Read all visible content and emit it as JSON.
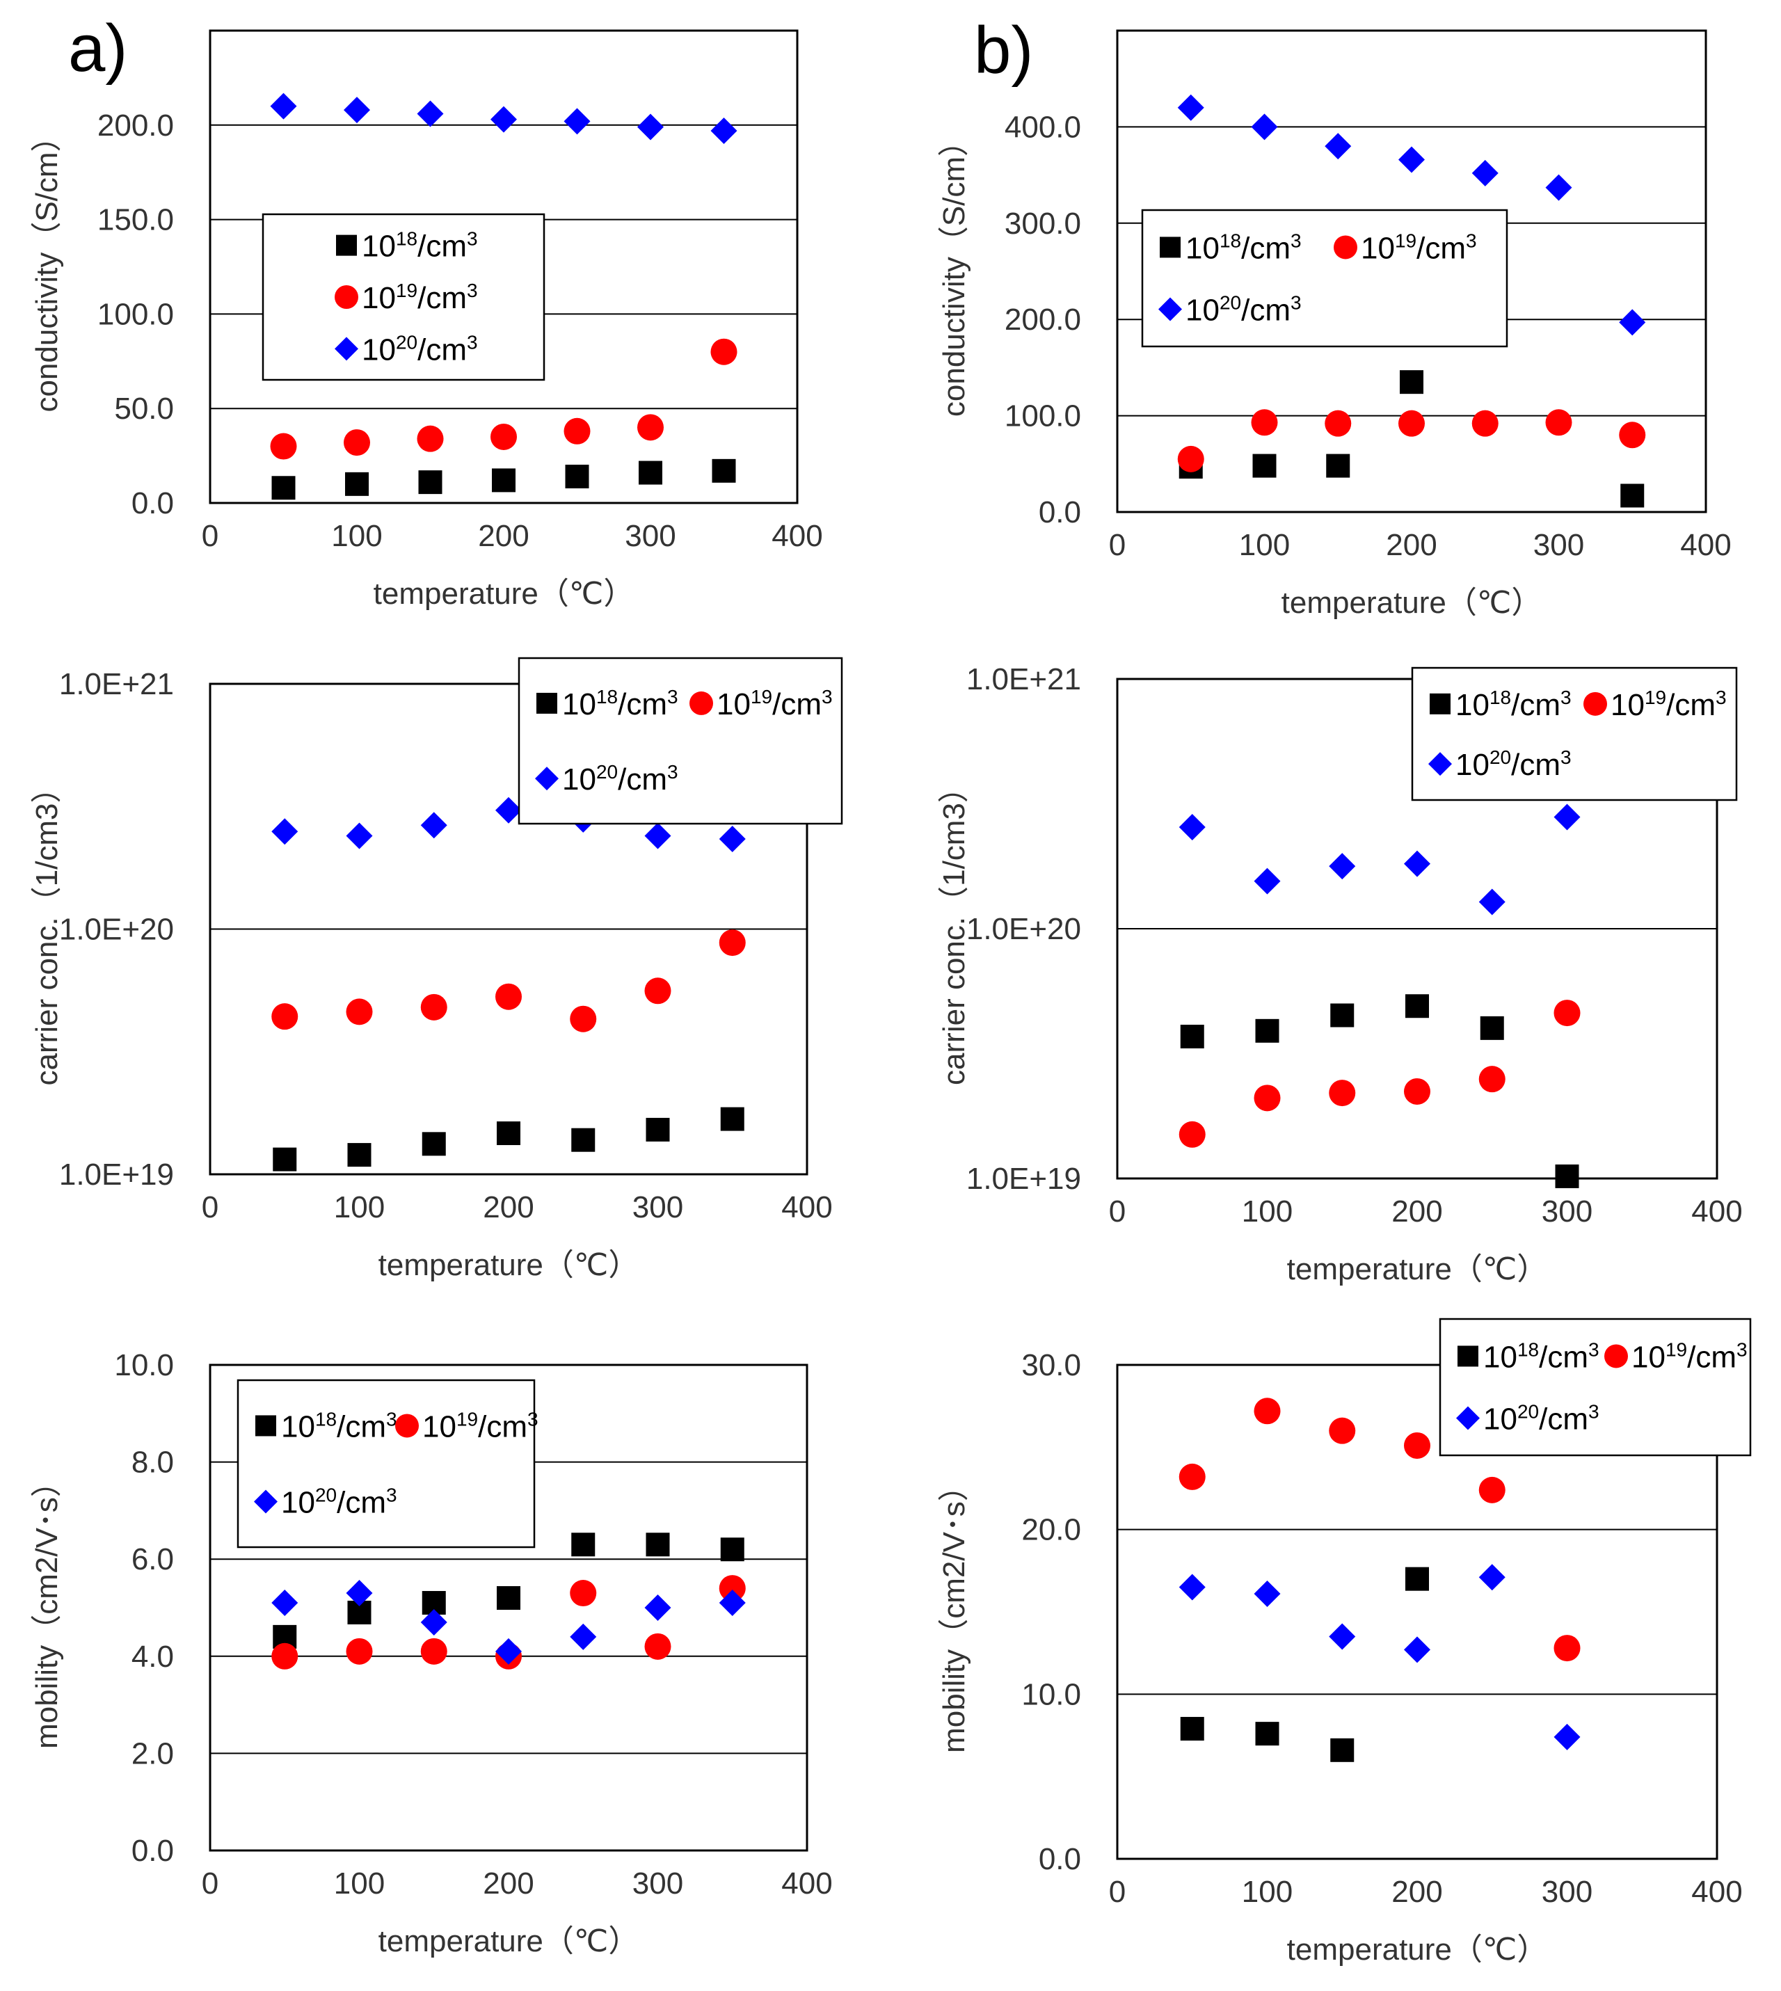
{
  "panel_labels": [
    "a)",
    "b)"
  ],
  "colors": {
    "s1e18": "#000000",
    "s1e19": "#ff0000",
    "s1e20": "#0000ff",
    "grid": "#000000"
  },
  "chart_data": [
    {
      "id": "a-conductivity",
      "type": "scatter",
      "panel": "a)",
      "xlabel": "temperature（℃）",
      "ylabel": "conductivity（S/cm）",
      "xlim": [
        0,
        400
      ],
      "xticks": [
        "0",
        "100",
        "200",
        "300",
        "400"
      ],
      "yscale": "linear",
      "ylim": [
        0,
        250
      ],
      "yticks": [
        "0.0",
        "50.0",
        "100.0",
        "150.0",
        "200.0"
      ],
      "legend_position": "center-left",
      "series": [
        {
          "name": "10^18/cm^3",
          "marker": "square",
          "x": [
            50,
            100,
            150,
            200,
            250,
            300,
            350
          ],
          "y": [
            8,
            10,
            11,
            12,
            14,
            16,
            17
          ]
        },
        {
          "name": "10^19/cm^3",
          "marker": "circle",
          "x": [
            50,
            100,
            150,
            200,
            250,
            300,
            350
          ],
          "y": [
            30,
            32,
            34,
            35,
            38,
            40,
            80
          ]
        },
        {
          "name": "10^20/cm^3",
          "marker": "diamond",
          "x": [
            50,
            100,
            150,
            200,
            250,
            300,
            350
          ],
          "y": [
            210,
            208,
            206,
            203,
            202,
            199,
            197
          ]
        }
      ]
    },
    {
      "id": "b-conductivity",
      "type": "scatter",
      "panel": "b)",
      "xlabel": "temperature（℃）",
      "ylabel": "conductivity（S/cm）",
      "xlim": [
        0,
        400
      ],
      "xticks": [
        "0",
        "100",
        "200",
        "300",
        "400"
      ],
      "yscale": "linear",
      "ylim": [
        0,
        500
      ],
      "yticks": [
        "0.0",
        "100.0",
        "200.0",
        "300.0",
        "400.0"
      ],
      "legend_position": "center-left",
      "series": [
        {
          "name": "10^18/cm^3",
          "marker": "square",
          "x": [
            50,
            100,
            150,
            200,
            350
          ],
          "y": [
            47,
            48,
            48,
            135,
            17
          ]
        },
        {
          "name": "10^19/cm^3",
          "marker": "circle",
          "x": [
            50,
            100,
            150,
            200,
            250,
            300,
            350
          ],
          "y": [
            55,
            93,
            92,
            92,
            92,
            93,
            80
          ]
        },
        {
          "name": "10^20/cm^3",
          "marker": "diamond",
          "x": [
            50,
            100,
            150,
            200,
            250,
            300,
            350
          ],
          "y": [
            420,
            400,
            380,
            366,
            352,
            337,
            197
          ]
        }
      ]
    },
    {
      "id": "a-carrier",
      "type": "scatter",
      "panel": "a)",
      "xlabel": "temperature（℃）",
      "ylabel": "carrier conc.（1/cm3）",
      "xlim": [
        0,
        400
      ],
      "xticks": [
        "0",
        "100",
        "200",
        "300",
        "400"
      ],
      "yscale": "log",
      "ylim": [
        1e+19,
        1e+21
      ],
      "yticks": [
        "1.0E+19",
        "1.0E+20",
        "1.0E+21"
      ],
      "legend_position": "top-right",
      "series": [
        {
          "name": "10^18/cm^3",
          "marker": "square",
          "x": [
            50,
            100,
            150,
            200,
            250,
            300,
            350
          ],
          "y": [
            1.15e+19,
            1.2e+19,
            1.33e+19,
            1.47e+19,
            1.38e+19,
            1.52e+19,
            1.68e+19
          ]
        },
        {
          "name": "10^19/cm^3",
          "marker": "circle",
          "x": [
            50,
            100,
            150,
            200,
            250,
            300,
            350
          ],
          "y": [
            4.4e+19,
            4.6e+19,
            4.8e+19,
            5.3e+19,
            4.3e+19,
            5.6e+19,
            8.8e+19
          ]
        },
        {
          "name": "10^20/cm^3",
          "marker": "diamond",
          "x": [
            50,
            100,
            150,
            200,
            250,
            300,
            350
          ],
          "y": [
            2.5e+20,
            2.4e+20,
            2.65e+20,
            3.05e+20,
            2.8e+20,
            2.4e+20,
            2.33e+20
          ]
        }
      ]
    },
    {
      "id": "b-carrier",
      "type": "scatter",
      "panel": "b)",
      "xlabel": "temperature（℃）",
      "ylabel": "carrier conc.（1/cm3）",
      "xlim": [
        0,
        400
      ],
      "xticks": [
        "0",
        "100",
        "200",
        "300",
        "400"
      ],
      "yscale": "log",
      "ylim": [
        1e+19,
        1e+21
      ],
      "yticks": [
        "1.0E+19",
        "1.0E+20",
        "1.0E+21"
      ],
      "legend_position": "top-right",
      "series": [
        {
          "name": "10^18/cm^3",
          "marker": "square",
          "x": [
            50,
            100,
            150,
            200,
            250,
            300
          ],
          "y": [
            3.7e+19,
            3.9e+19,
            4.5e+19,
            4.9e+19,
            4e+19,
            1.02e+19
          ]
        },
        {
          "name": "10^19/cm^3",
          "marker": "circle",
          "x": [
            50,
            100,
            150,
            200,
            250,
            300
          ],
          "y": [
            1.5e+19,
            2.1e+19,
            2.2e+19,
            2.23e+19,
            2.5e+19,
            4.6e+19
          ]
        },
        {
          "name": "10^20/cm^3",
          "marker": "diamond",
          "x": [
            50,
            100,
            150,
            200,
            250,
            300
          ],
          "y": [
            2.55e+20,
            1.55e+20,
            1.78e+20,
            1.82e+20,
            1.28e+20,
            2.8e+20
          ]
        }
      ]
    },
    {
      "id": "a-mobility",
      "type": "scatter",
      "panel": "a)",
      "xlabel": "temperature（℃）",
      "ylabel": "mobility（cm2/V･s）",
      "xlim": [
        0,
        400
      ],
      "xticks": [
        "0",
        "100",
        "200",
        "300",
        "400"
      ],
      "yscale": "linear",
      "ylim": [
        0,
        10
      ],
      "yticks": [
        "0.0",
        "2.0",
        "4.0",
        "6.0",
        "8.0",
        "10.0"
      ],
      "legend_position": "top-left",
      "series": [
        {
          "name": "10^18/cm^3",
          "marker": "square",
          "x": [
            50,
            100,
            150,
            200,
            250,
            300,
            350
          ],
          "y": [
            4.4,
            4.9,
            5.1,
            5.2,
            6.3,
            6.3,
            6.2
          ]
        },
        {
          "name": "10^19/cm^3",
          "marker": "circle",
          "x": [
            50,
            100,
            150,
            200,
            250,
            300,
            350
          ],
          "y": [
            4.0,
            4.1,
            4.1,
            4.0,
            5.3,
            4.2,
            5.4
          ]
        },
        {
          "name": "10^20/cm^3",
          "marker": "diamond",
          "x": [
            50,
            100,
            150,
            200,
            250,
            300,
            350
          ],
          "y": [
            5.1,
            5.3,
            4.7,
            4.1,
            4.4,
            5.0,
            5.1
          ]
        }
      ]
    },
    {
      "id": "b-mobility",
      "type": "scatter",
      "panel": "b)",
      "xlabel": "temperature（℃）",
      "ylabel": "mobility（cm2/V･s）",
      "xlim": [
        0,
        400
      ],
      "xticks": [
        "0",
        "100",
        "200",
        "300",
        "400"
      ],
      "yscale": "linear",
      "ylim": [
        0,
        30
      ],
      "yticks": [
        "0.0",
        "10.0",
        "20.0",
        "30.0"
      ],
      "legend_position": "top-right",
      "series": [
        {
          "name": "10^18/cm^3",
          "marker": "square",
          "x": [
            50,
            100,
            150,
            200
          ],
          "y": [
            7.9,
            7.6,
            6.6,
            17.0
          ]
        },
        {
          "name": "10^19/cm^3",
          "marker": "circle",
          "x": [
            50,
            100,
            150,
            200,
            250,
            300
          ],
          "y": [
            23.2,
            27.2,
            26.0,
            25.1,
            22.4,
            12.8
          ]
        },
        {
          "name": "10^20/cm^3",
          "marker": "diamond",
          "x": [
            50,
            100,
            150,
            200,
            250,
            300
          ],
          "y": [
            16.5,
            16.1,
            13.5,
            12.7,
            17.1,
            7.4
          ]
        }
      ]
    }
  ]
}
